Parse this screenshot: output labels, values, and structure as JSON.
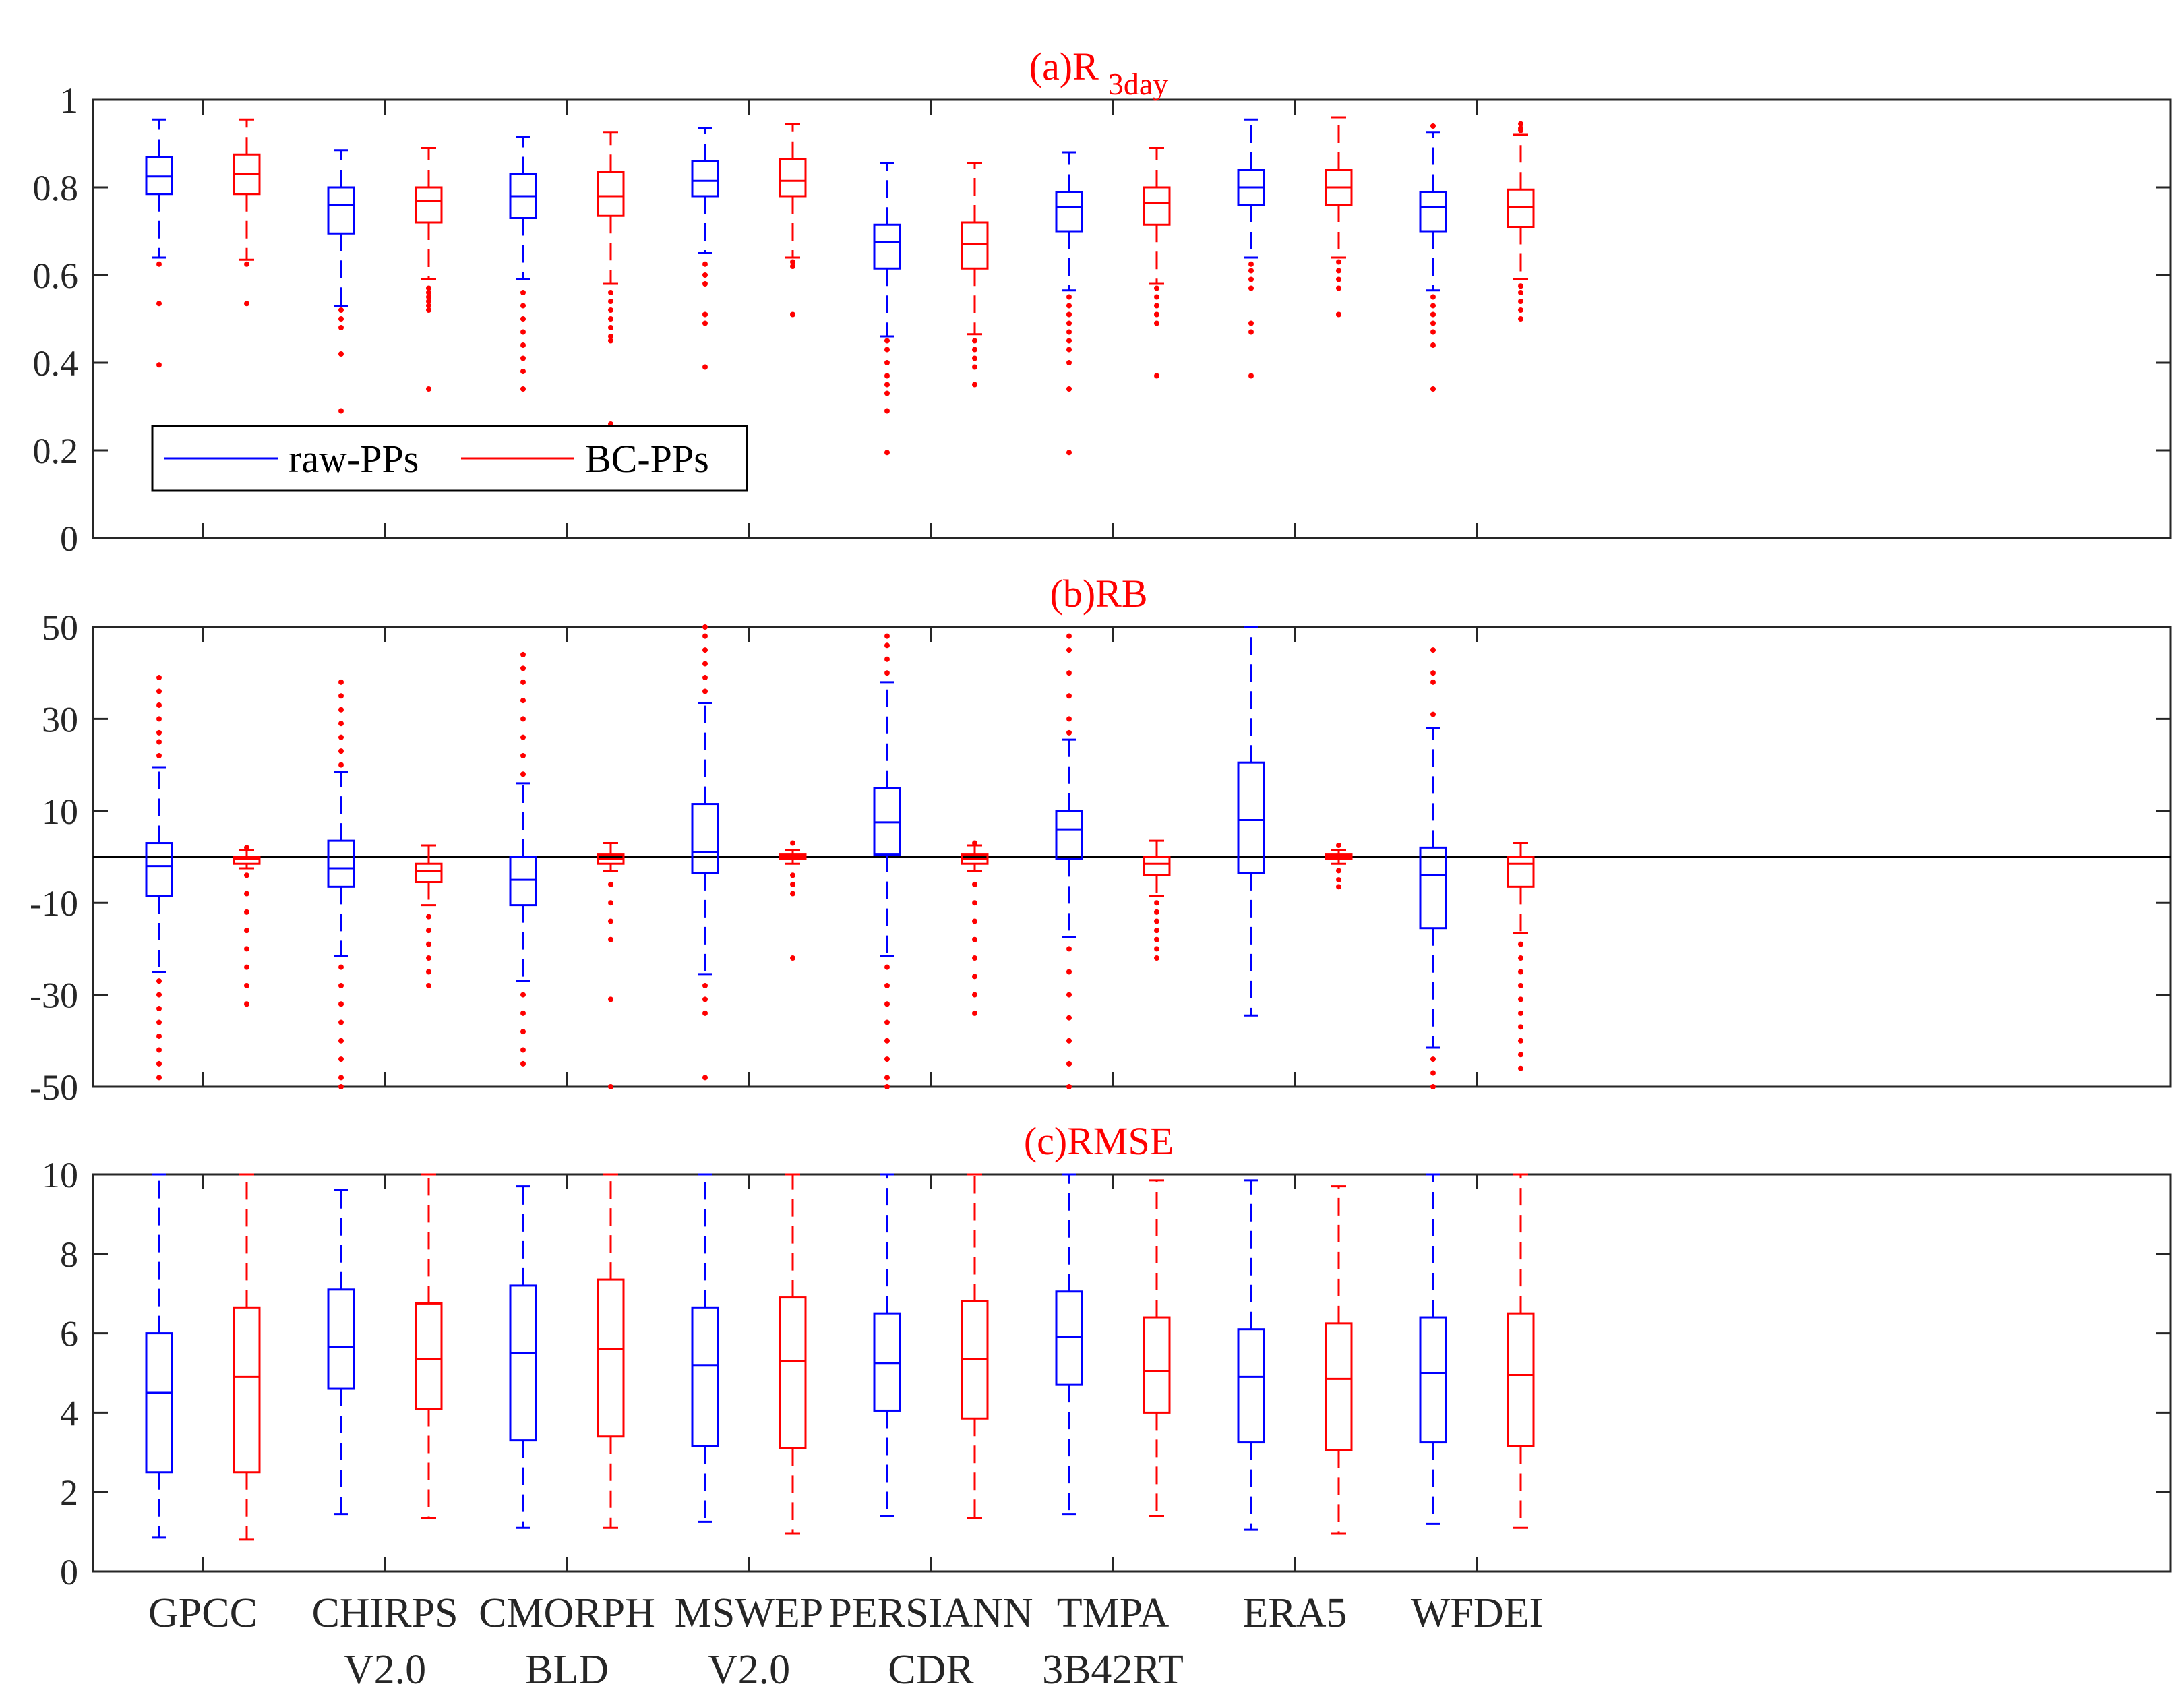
{
  "colors": {
    "raw": "#0000ff",
    "bc": "#ff0000",
    "axis": "#262626",
    "title": "#ff0000"
  },
  "chart_data": {
    "type": "boxplot",
    "categories": [
      {
        "line1": "GPCC",
        "line2": ""
      },
      {
        "line1": "CHIRPS",
        "line2": "V2.0"
      },
      {
        "line1": "CMORPH",
        "line2": "BLD"
      },
      {
        "line1": "MSWEP",
        "line2": "V2.0"
      },
      {
        "line1": "PERSIANN",
        "line2": "CDR"
      },
      {
        "line1": "TMPA",
        "line2": "3B42RT"
      },
      {
        "line1": "ERA5",
        "line2": ""
      },
      {
        "line1": "WFDEI",
        "line2": ""
      }
    ],
    "legend": {
      "raw": "raw-PPs",
      "bc": "BC-PPs",
      "position": "lower-left of panel (a)"
    },
    "panels": [
      {
        "id": "a",
        "title_prefix": "(a)R",
        "title_sub": "3day",
        "ylim": [
          0,
          1
        ],
        "yticks": [
          0,
          0.2,
          0.4,
          0.6,
          0.8,
          1
        ],
        "ytick_labels": [
          "0",
          "0.2",
          "0.4",
          "0.6",
          "0.8",
          "1"
        ],
        "hline": null,
        "raw": [
          {
            "wl": 0.64,
            "q1": 0.785,
            "med": 0.825,
            "q3": 0.87,
            "wh": 0.955,
            "out": [
              0.625,
              0.535,
              0.395
            ]
          },
          {
            "wl": 0.53,
            "q1": 0.695,
            "med": 0.76,
            "q3": 0.8,
            "wh": 0.885,
            "out": [
              0.52,
              0.5,
              0.48,
              0.42,
              0.29
            ]
          },
          {
            "wl": 0.59,
            "q1": 0.73,
            "med": 0.78,
            "q3": 0.83,
            "wh": 0.915,
            "out": [
              0.56,
              0.53,
              0.5,
              0.47,
              0.44,
              0.41,
              0.38,
              0.34
            ]
          },
          {
            "wl": 0.65,
            "q1": 0.78,
            "med": 0.815,
            "q3": 0.86,
            "wh": 0.935,
            "out": [
              0.625,
              0.6,
              0.58,
              0.51,
              0.49,
              0.39
            ]
          },
          {
            "wl": 0.46,
            "q1": 0.615,
            "med": 0.675,
            "q3": 0.715,
            "wh": 0.855,
            "out": [
              0.45,
              0.43,
              0.4,
              0.37,
              0.35,
              0.33,
              0.29,
              0.195
            ]
          },
          {
            "wl": 0.565,
            "q1": 0.7,
            "med": 0.755,
            "q3": 0.79,
            "wh": 0.88,
            "out": [
              0.55,
              0.53,
              0.51,
              0.49,
              0.47,
              0.45,
              0.43,
              0.4,
              0.34,
              0.195
            ]
          },
          {
            "wl": 0.64,
            "q1": 0.76,
            "med": 0.8,
            "q3": 0.84,
            "wh": 0.955,
            "out": [
              0.625,
              0.61,
              0.59,
              0.57,
              0.49,
              0.47,
              0.37
            ]
          },
          {
            "wl": 0.565,
            "q1": 0.7,
            "med": 0.755,
            "q3": 0.79,
            "wh": 0.925,
            "out": [
              0.94,
              0.55,
              0.53,
              0.51,
              0.49,
              0.47,
              0.44,
              0.34
            ]
          }
        ],
        "bc": [
          {
            "wl": 0.635,
            "q1": 0.785,
            "med": 0.83,
            "q3": 0.875,
            "wh": 0.955,
            "out": [
              0.625,
              0.535
            ]
          },
          {
            "wl": 0.59,
            "q1": 0.72,
            "med": 0.77,
            "q3": 0.8,
            "wh": 0.89,
            "out": [
              0.57,
              0.56,
              0.55,
              0.54,
              0.53,
              0.52,
              0.34
            ]
          },
          {
            "wl": 0.58,
            "q1": 0.735,
            "med": 0.78,
            "q3": 0.835,
            "wh": 0.925,
            "out": [
              0.56,
              0.54,
              0.52,
              0.5,
              0.48,
              0.46,
              0.45,
              0.26
            ]
          },
          {
            "wl": 0.64,
            "q1": 0.78,
            "med": 0.815,
            "q3": 0.865,
            "wh": 0.945,
            "out": [
              0.63,
              0.62,
              0.51
            ]
          },
          {
            "wl": 0.465,
            "q1": 0.615,
            "med": 0.67,
            "q3": 0.72,
            "wh": 0.855,
            "out": [
              0.45,
              0.43,
              0.41,
              0.39,
              0.35
            ]
          },
          {
            "wl": 0.58,
            "q1": 0.715,
            "med": 0.765,
            "q3": 0.8,
            "wh": 0.89,
            "out": [
              0.57,
              0.55,
              0.53,
              0.51,
              0.49,
              0.37
            ]
          },
          {
            "wl": 0.64,
            "q1": 0.76,
            "med": 0.8,
            "q3": 0.84,
            "wh": 0.96,
            "out": [
              0.63,
              0.61,
              0.59,
              0.57,
              0.51
            ]
          },
          {
            "wl": 0.59,
            "q1": 0.71,
            "med": 0.755,
            "q3": 0.795,
            "wh": 0.92,
            "out": [
              0.945,
              0.935,
              0.93,
              0.575,
              0.56,
              0.54,
              0.52,
              0.5
            ]
          }
        ]
      },
      {
        "id": "b",
        "title_prefix": "(b)RB",
        "title_sub": "",
        "ylim": [
          -50,
          50
        ],
        "yticks": [
          -50,
          -30,
          -10,
          10,
          30,
          50
        ],
        "ytick_labels": [
          "-50",
          "-30",
          "-10",
          "10",
          "30",
          "50"
        ],
        "hline": 0,
        "raw": [
          {
            "wl": -25,
            "q1": -8.5,
            "med": -2,
            "q3": 3,
            "wh": 19.5,
            "out": [
              22,
              25,
              27,
              30,
              33,
              36,
              39,
              -27,
              -30,
              -33,
              -36,
              -39,
              -42,
              -45,
              -48
            ]
          },
          {
            "wl": -21.5,
            "q1": -6.5,
            "med": -2.5,
            "q3": 3.5,
            "wh": 18.5,
            "out": [
              20,
              23,
              26,
              29,
              32,
              35,
              38,
              -24,
              -28,
              -32,
              -36,
              -40,
              -44,
              -48,
              -50
            ]
          },
          {
            "wl": -27,
            "q1": -10.5,
            "med": -5,
            "q3": 0,
            "wh": 16,
            "out": [
              18,
              22,
              26,
              30,
              34,
              38,
              41,
              44,
              -30,
              -34,
              -38,
              -42,
              -45
            ]
          },
          {
            "wl": -25.5,
            "q1": -3.5,
            "med": 1,
            "q3": 11.5,
            "wh": 33.5,
            "out": [
              36,
              39,
              42,
              45,
              48,
              50,
              -28,
              -31,
              -34,
              -48
            ]
          },
          {
            "wl": -21.5,
            "q1": 0.5,
            "med": 7.5,
            "q3": 15,
            "wh": 38,
            "out": [
              40,
              43,
              46,
              48,
              -24,
              -28,
              -32,
              -36,
              -40,
              -44,
              -48,
              -50
            ]
          },
          {
            "wl": -17.5,
            "q1": -0.5,
            "med": 6,
            "q3": 10,
            "wh": 25.5,
            "out": [
              27,
              30,
              35,
              40,
              45,
              48,
              -20,
              -25,
              -30,
              -35,
              -40,
              -45,
              -50
            ]
          },
          {
            "wl": -34.5,
            "q1": -3.5,
            "med": 8,
            "q3": 20.5,
            "wh": 50,
            "out": []
          },
          {
            "wl": -41.5,
            "q1": -15.5,
            "med": -4,
            "q3": 2,
            "wh": 28,
            "out": [
              31,
              38,
              40,
              45,
              -44,
              -47,
              -50
            ]
          }
        ],
        "bc": [
          {
            "wl": -2.5,
            "q1": -1.5,
            "med": -0.5,
            "q3": 0,
            "wh": 1.5,
            "out": [
              2,
              -4,
              -8,
              -12,
              -16,
              -20,
              -24,
              -28,
              -32
            ]
          },
          {
            "wl": -10.5,
            "q1": -5.5,
            "med": -3,
            "q3": -1.5,
            "wh": 2.5,
            "out": [
              -13,
              -16,
              -19,
              -22,
              -25,
              -28
            ]
          },
          {
            "wl": -3,
            "q1": -1.5,
            "med": -0.5,
            "q3": 0.5,
            "wh": 3,
            "out": [
              -6,
              -10,
              -14,
              -18,
              -31,
              -50
            ]
          },
          {
            "wl": -1.5,
            "q1": -0.5,
            "med": 0,
            "q3": 0.5,
            "wh": 1.5,
            "out": [
              3,
              -4,
              -6,
              -8,
              -22
            ]
          },
          {
            "wl": -3,
            "q1": -1.5,
            "med": -0.5,
            "q3": 0.5,
            "wh": 2.5,
            "out": [
              3,
              -6,
              -10,
              -14,
              -18,
              -22,
              -26,
              -30,
              -34
            ]
          },
          {
            "wl": -8.5,
            "q1": -4,
            "med": -1.5,
            "q3": 0,
            "wh": 3.5,
            "out": [
              -10,
              -12,
              -14,
              -16,
              -18,
              -20,
              -22
            ]
          },
          {
            "wl": -1.5,
            "q1": -0.5,
            "med": 0,
            "q3": 0.5,
            "wh": 1.5,
            "out": [
              2.5,
              -3,
              -5,
              -6.5
            ]
          },
          {
            "wl": -16.5,
            "q1": -6.5,
            "med": -1.5,
            "q3": 0,
            "wh": 3,
            "out": [
              -19,
              -22,
              -25,
              -28,
              -31,
              -34,
              -37,
              -40,
              -43,
              -46
            ]
          }
        ]
      },
      {
        "id": "c",
        "title_prefix": "(c)RMSE",
        "title_sub": "",
        "ylim": [
          0,
          10
        ],
        "yticks": [
          0,
          2,
          4,
          6,
          8,
          10
        ],
        "ytick_labels": [
          "0",
          "2",
          "4",
          "6",
          "8",
          "10"
        ],
        "hline": null,
        "raw": [
          {
            "wl": 0.85,
            "q1": 2.5,
            "med": 4.5,
            "q3": 6.0,
            "wh": 10,
            "out": []
          },
          {
            "wl": 1.45,
            "q1": 4.6,
            "med": 5.65,
            "q3": 7.1,
            "wh": 9.6,
            "out": []
          },
          {
            "wl": 1.1,
            "q1": 3.3,
            "med": 5.5,
            "q3": 7.2,
            "wh": 9.7,
            "out": []
          },
          {
            "wl": 1.25,
            "q1": 3.15,
            "med": 5.2,
            "q3": 6.65,
            "wh": 10,
            "out": []
          },
          {
            "wl": 1.4,
            "q1": 4.05,
            "med": 5.25,
            "q3": 6.5,
            "wh": 10,
            "out": []
          },
          {
            "wl": 1.45,
            "q1": 4.7,
            "med": 5.9,
            "q3": 7.05,
            "wh": 10,
            "out": []
          },
          {
            "wl": 1.05,
            "q1": 3.25,
            "med": 4.9,
            "q3": 6.1,
            "wh": 9.85,
            "out": []
          },
          {
            "wl": 1.2,
            "q1": 3.25,
            "med": 5.0,
            "q3": 6.4,
            "wh": 10,
            "out": []
          }
        ],
        "bc": [
          {
            "wl": 0.8,
            "q1": 2.5,
            "med": 4.9,
            "q3": 6.65,
            "wh": 10,
            "out": []
          },
          {
            "wl": 1.35,
            "q1": 4.1,
            "med": 5.35,
            "q3": 6.75,
            "wh": 10,
            "out": []
          },
          {
            "wl": 1.1,
            "q1": 3.4,
            "med": 5.6,
            "q3": 7.35,
            "wh": 10,
            "out": []
          },
          {
            "wl": 0.95,
            "q1": 3.1,
            "med": 5.3,
            "q3": 6.9,
            "wh": 10,
            "out": []
          },
          {
            "wl": 1.35,
            "q1": 3.85,
            "med": 5.35,
            "q3": 6.8,
            "wh": 10,
            "out": []
          },
          {
            "wl": 1.4,
            "q1": 4.0,
            "med": 5.05,
            "q3": 6.4,
            "wh": 9.85,
            "out": []
          },
          {
            "wl": 0.95,
            "q1": 3.05,
            "med": 4.85,
            "q3": 6.25,
            "wh": 9.7,
            "out": []
          },
          {
            "wl": 1.1,
            "q1": 3.15,
            "med": 4.95,
            "q3": 6.5,
            "wh": 10,
            "out": []
          }
        ]
      }
    ]
  }
}
